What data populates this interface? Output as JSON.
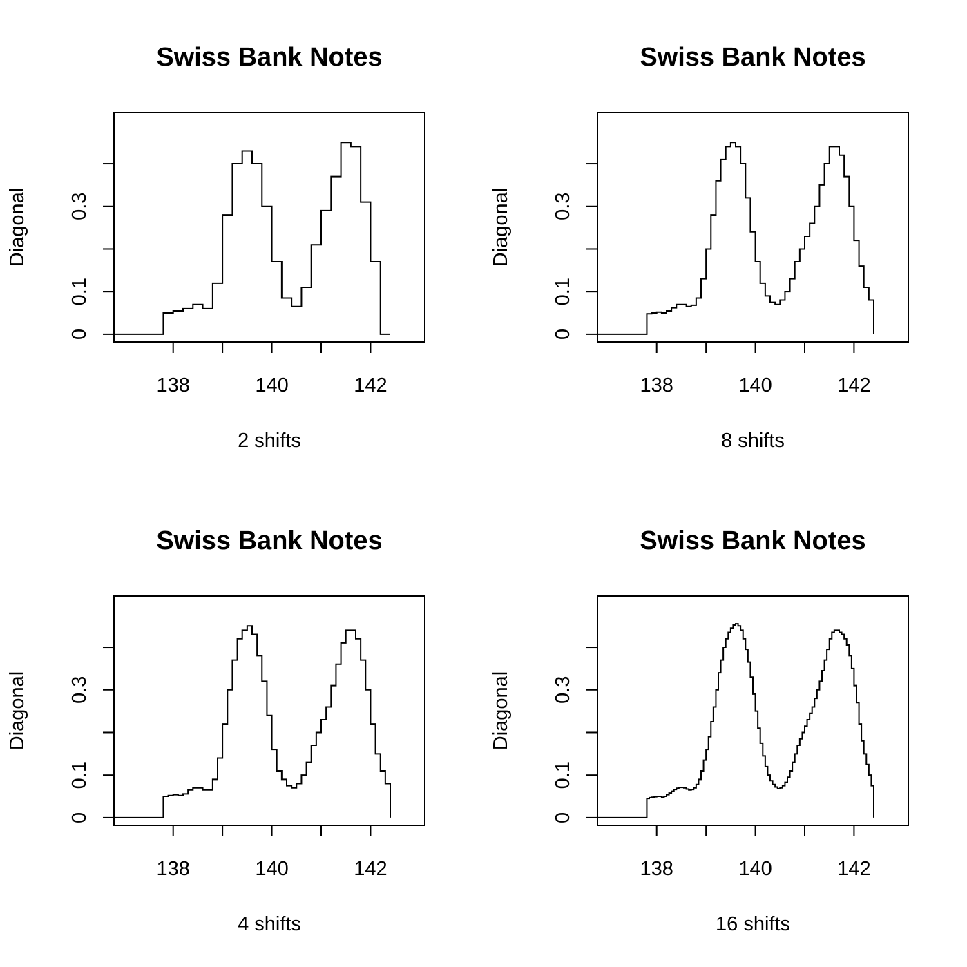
{
  "chart_data": [
    {
      "type": "line",
      "title": "Swiss Bank Notes",
      "xlabel": "2  shifts",
      "ylabel": "Diagonal",
      "xlim": [
        136.8,
        143.1
      ],
      "ylim": [
        -0.018,
        0.52
      ],
      "xticks": [
        138,
        139,
        140,
        141,
        142
      ],
      "xtick_labels": [
        "138",
        "",
        "140",
        "",
        "142"
      ],
      "yticks": [
        0,
        0.1,
        0.2,
        0.3,
        0.4
      ],
      "ytick_labels": [
        "0",
        "0.1",
        "",
        "0.3",
        ""
      ],
      "step": "post",
      "x": [
        136.8,
        137.8,
        138.0,
        138.2,
        138.4,
        138.6,
        138.8,
        139.0,
        139.2,
        139.4,
        139.6,
        139.8,
        140.0,
        140.2,
        140.4,
        140.6,
        140.8,
        141.0,
        141.2,
        141.4,
        141.6,
        141.8,
        142.0,
        142.2,
        142.4
      ],
      "values": [
        0,
        0.05,
        0.055,
        0.06,
        0.07,
        0.06,
        0.12,
        0.28,
        0.4,
        0.43,
        0.4,
        0.3,
        0.17,
        0.085,
        0.065,
        0.11,
        0.21,
        0.29,
        0.37,
        0.45,
        0.44,
        0.31,
        0.17,
        0,
        0
      ]
    },
    {
      "type": "line",
      "title": "Swiss Bank Notes",
      "xlabel": "8  shifts",
      "ylabel": "Diagonal",
      "xlim": [
        136.8,
        143.1
      ],
      "ylim": [
        -0.018,
        0.52
      ],
      "xticks": [
        138,
        139,
        140,
        141,
        142
      ],
      "xtick_labels": [
        "138",
        "",
        "140",
        "",
        "142"
      ],
      "yticks": [
        0,
        0.1,
        0.2,
        0.3,
        0.4
      ],
      "ytick_labels": [
        "0",
        "0.1",
        "",
        "0.3",
        ""
      ],
      "step": "post",
      "x": [
        136.8,
        137.8,
        137.9,
        138.0,
        138.1,
        138.2,
        138.3,
        138.4,
        138.5,
        138.6,
        138.7,
        138.8,
        138.9,
        139.0,
        139.1,
        139.2,
        139.3,
        139.4,
        139.5,
        139.6,
        139.7,
        139.8,
        139.9,
        140.0,
        140.1,
        140.2,
        140.3,
        140.4,
        140.5,
        140.6,
        140.7,
        140.8,
        140.9,
        141.0,
        141.1,
        141.2,
        141.3,
        141.4,
        141.5,
        141.6,
        141.7,
        141.8,
        141.9,
        142.0,
        142.1,
        142.2,
        142.3,
        142.4
      ],
      "values": [
        0,
        0.048,
        0.05,
        0.052,
        0.05,
        0.055,
        0.062,
        0.07,
        0.07,
        0.065,
        0.068,
        0.085,
        0.13,
        0.2,
        0.28,
        0.36,
        0.41,
        0.44,
        0.45,
        0.44,
        0.4,
        0.32,
        0.24,
        0.17,
        0.12,
        0.09,
        0.075,
        0.07,
        0.08,
        0.1,
        0.13,
        0.17,
        0.2,
        0.23,
        0.26,
        0.3,
        0.35,
        0.4,
        0.44,
        0.44,
        0.42,
        0.37,
        0.3,
        0.22,
        0.16,
        0.11,
        0.08,
        0
      ]
    },
    {
      "type": "line",
      "title": "Swiss Bank Notes",
      "xlabel": "4  shifts",
      "ylabel": "Diagonal",
      "xlim": [
        136.8,
        143.1
      ],
      "ylim": [
        -0.018,
        0.52
      ],
      "xticks": [
        138,
        139,
        140,
        141,
        142
      ],
      "xtick_labels": [
        "138",
        "",
        "140",
        "",
        "142"
      ],
      "yticks": [
        0,
        0.1,
        0.2,
        0.3,
        0.4
      ],
      "ytick_labels": [
        "0",
        "0.1",
        "",
        "0.3",
        ""
      ],
      "step": "post",
      "x": [
        136.8,
        137.8,
        137.9,
        138.0,
        138.1,
        138.2,
        138.3,
        138.4,
        138.5,
        138.6,
        138.7,
        138.8,
        138.9,
        139.0,
        139.1,
        139.2,
        139.3,
        139.4,
        139.5,
        139.6,
        139.7,
        139.8,
        139.9,
        140.0,
        140.1,
        140.2,
        140.3,
        140.4,
        140.5,
        140.6,
        140.7,
        140.8,
        140.9,
        141.0,
        141.1,
        141.2,
        141.3,
        141.4,
        141.5,
        141.6,
        141.7,
        141.8,
        141.9,
        142.0,
        142.1,
        142.2,
        142.3,
        142.4
      ],
      "values": [
        0,
        0.05,
        0.052,
        0.054,
        0.052,
        0.056,
        0.065,
        0.07,
        0.07,
        0.065,
        0.065,
        0.09,
        0.14,
        0.22,
        0.3,
        0.37,
        0.42,
        0.44,
        0.45,
        0.43,
        0.38,
        0.32,
        0.24,
        0.16,
        0.11,
        0.09,
        0.075,
        0.07,
        0.08,
        0.1,
        0.13,
        0.17,
        0.2,
        0.23,
        0.26,
        0.31,
        0.36,
        0.41,
        0.44,
        0.44,
        0.42,
        0.37,
        0.3,
        0.22,
        0.15,
        0.11,
        0.08,
        0
      ]
    },
    {
      "type": "line",
      "title": "Swiss Bank Notes",
      "xlabel": "16  shifts",
      "ylabel": "Diagonal",
      "xlim": [
        136.8,
        143.1
      ],
      "ylim": [
        -0.018,
        0.52
      ],
      "xticks": [
        138,
        139,
        140,
        141,
        142
      ],
      "xtick_labels": [
        "138",
        "",
        "140",
        "",
        "142"
      ],
      "yticks": [
        0,
        0.1,
        0.2,
        0.3,
        0.4
      ],
      "ytick_labels": [
        "0",
        "0.1",
        "",
        "0.3",
        ""
      ],
      "step": "post",
      "x": [
        136.8,
        137.8,
        137.85,
        137.9,
        137.95,
        138.0,
        138.05,
        138.1,
        138.15,
        138.2,
        138.25,
        138.3,
        138.35,
        138.4,
        138.45,
        138.5,
        138.55,
        138.6,
        138.65,
        138.7,
        138.75,
        138.8,
        138.85,
        138.9,
        138.95,
        139.0,
        139.05,
        139.1,
        139.15,
        139.2,
        139.25,
        139.3,
        139.35,
        139.4,
        139.45,
        139.5,
        139.55,
        139.6,
        139.65,
        139.7,
        139.75,
        139.8,
        139.85,
        139.9,
        139.95,
        140.0,
        140.05,
        140.1,
        140.15,
        140.2,
        140.25,
        140.3,
        140.35,
        140.4,
        140.45,
        140.5,
        140.55,
        140.6,
        140.65,
        140.7,
        140.75,
        140.8,
        140.85,
        140.9,
        140.95,
        141.0,
        141.05,
        141.1,
        141.15,
        141.2,
        141.25,
        141.3,
        141.35,
        141.4,
        141.45,
        141.5,
        141.55,
        141.6,
        141.65,
        141.7,
        141.75,
        141.8,
        141.85,
        141.9,
        141.95,
        142.0,
        142.05,
        142.1,
        142.15,
        142.2,
        142.25,
        142.3,
        142.35,
        142.4
      ],
      "values": [
        0,
        0.045,
        0.047,
        0.048,
        0.049,
        0.05,
        0.05,
        0.048,
        0.05,
        0.054,
        0.058,
        0.062,
        0.066,
        0.069,
        0.071,
        0.071,
        0.07,
        0.067,
        0.065,
        0.066,
        0.07,
        0.078,
        0.09,
        0.11,
        0.135,
        0.16,
        0.19,
        0.225,
        0.26,
        0.3,
        0.34,
        0.37,
        0.4,
        0.42,
        0.435,
        0.445,
        0.452,
        0.455,
        0.45,
        0.44,
        0.42,
        0.395,
        0.365,
        0.33,
        0.29,
        0.25,
        0.21,
        0.175,
        0.145,
        0.12,
        0.1,
        0.087,
        0.078,
        0.072,
        0.068,
        0.07,
        0.075,
        0.083,
        0.095,
        0.11,
        0.13,
        0.15,
        0.17,
        0.185,
        0.2,
        0.215,
        0.23,
        0.245,
        0.26,
        0.28,
        0.3,
        0.32,
        0.345,
        0.37,
        0.395,
        0.42,
        0.435,
        0.44,
        0.44,
        0.435,
        0.43,
        0.42,
        0.405,
        0.38,
        0.35,
        0.31,
        0.27,
        0.22,
        0.18,
        0.15,
        0.125,
        0.1,
        0.075,
        0
      ]
    }
  ]
}
